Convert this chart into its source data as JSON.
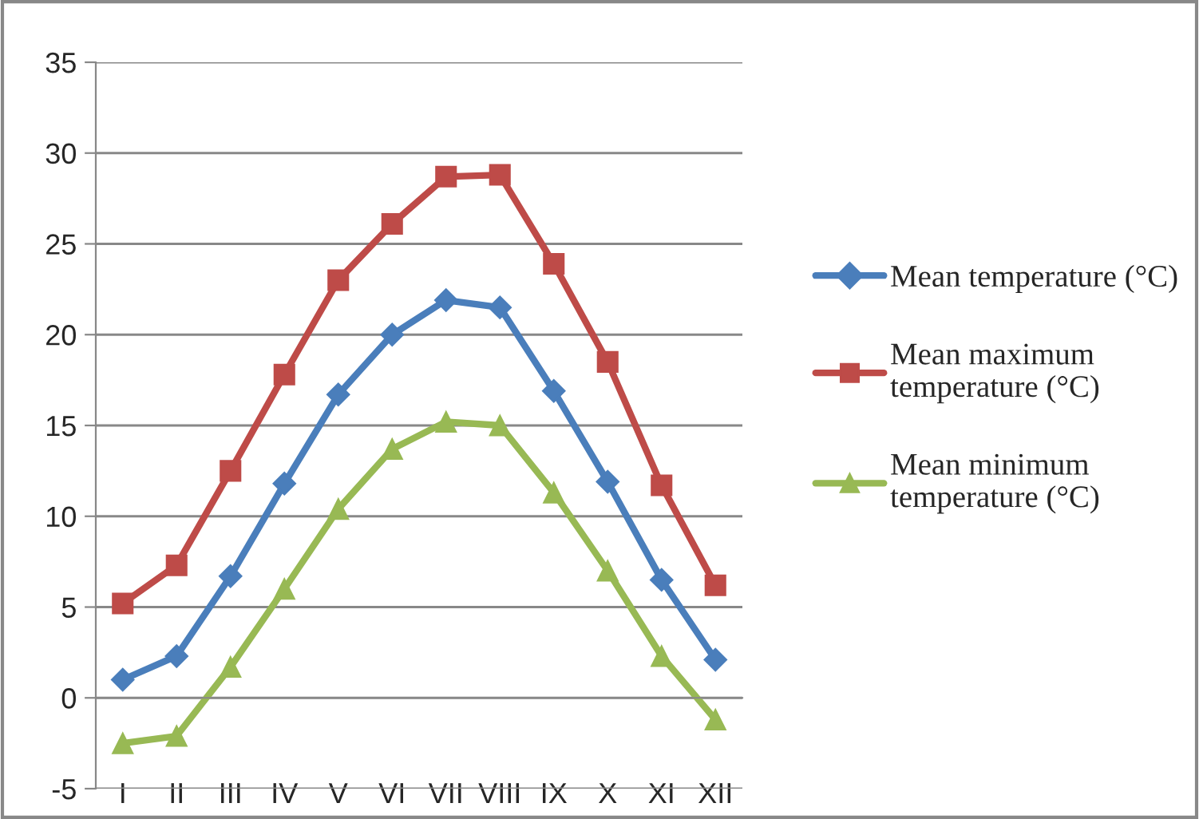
{
  "chart_data": {
    "type": "line",
    "categories": [
      "I",
      "II",
      "III",
      "IV",
      "V",
      "VI",
      "VII",
      "VIII",
      "IX",
      "X",
      "XI",
      "XII"
    ],
    "series": [
      {
        "name": "Mean temperature (°C)",
        "color": "#4a7ebb",
        "marker": "diamond",
        "values": [
          1.0,
          2.3,
          6.7,
          11.8,
          16.7,
          20.0,
          21.9,
          21.5,
          16.9,
          11.9,
          6.5,
          2.1
        ]
      },
      {
        "name": "Mean maximum temperature (°C)",
        "color": "#be4b48",
        "marker": "square",
        "values": [
          5.2,
          7.3,
          12.5,
          17.8,
          23.0,
          26.1,
          28.7,
          28.8,
          23.9,
          18.5,
          11.7,
          6.2
        ]
      },
      {
        "name": "Mean minimum temperature (°C)",
        "color": "#98b954",
        "marker": "triangle",
        "values": [
          -2.5,
          -2.1,
          1.7,
          6.0,
          10.4,
          13.7,
          15.2,
          15.0,
          11.3,
          7.0,
          2.3,
          -1.2
        ]
      }
    ],
    "ylim": [
      -5,
      35
    ],
    "yticks": [
      -5,
      0,
      5,
      10,
      15,
      20,
      25,
      30,
      35
    ],
    "grid": "y",
    "legend": "right",
    "line_style": "solid"
  }
}
